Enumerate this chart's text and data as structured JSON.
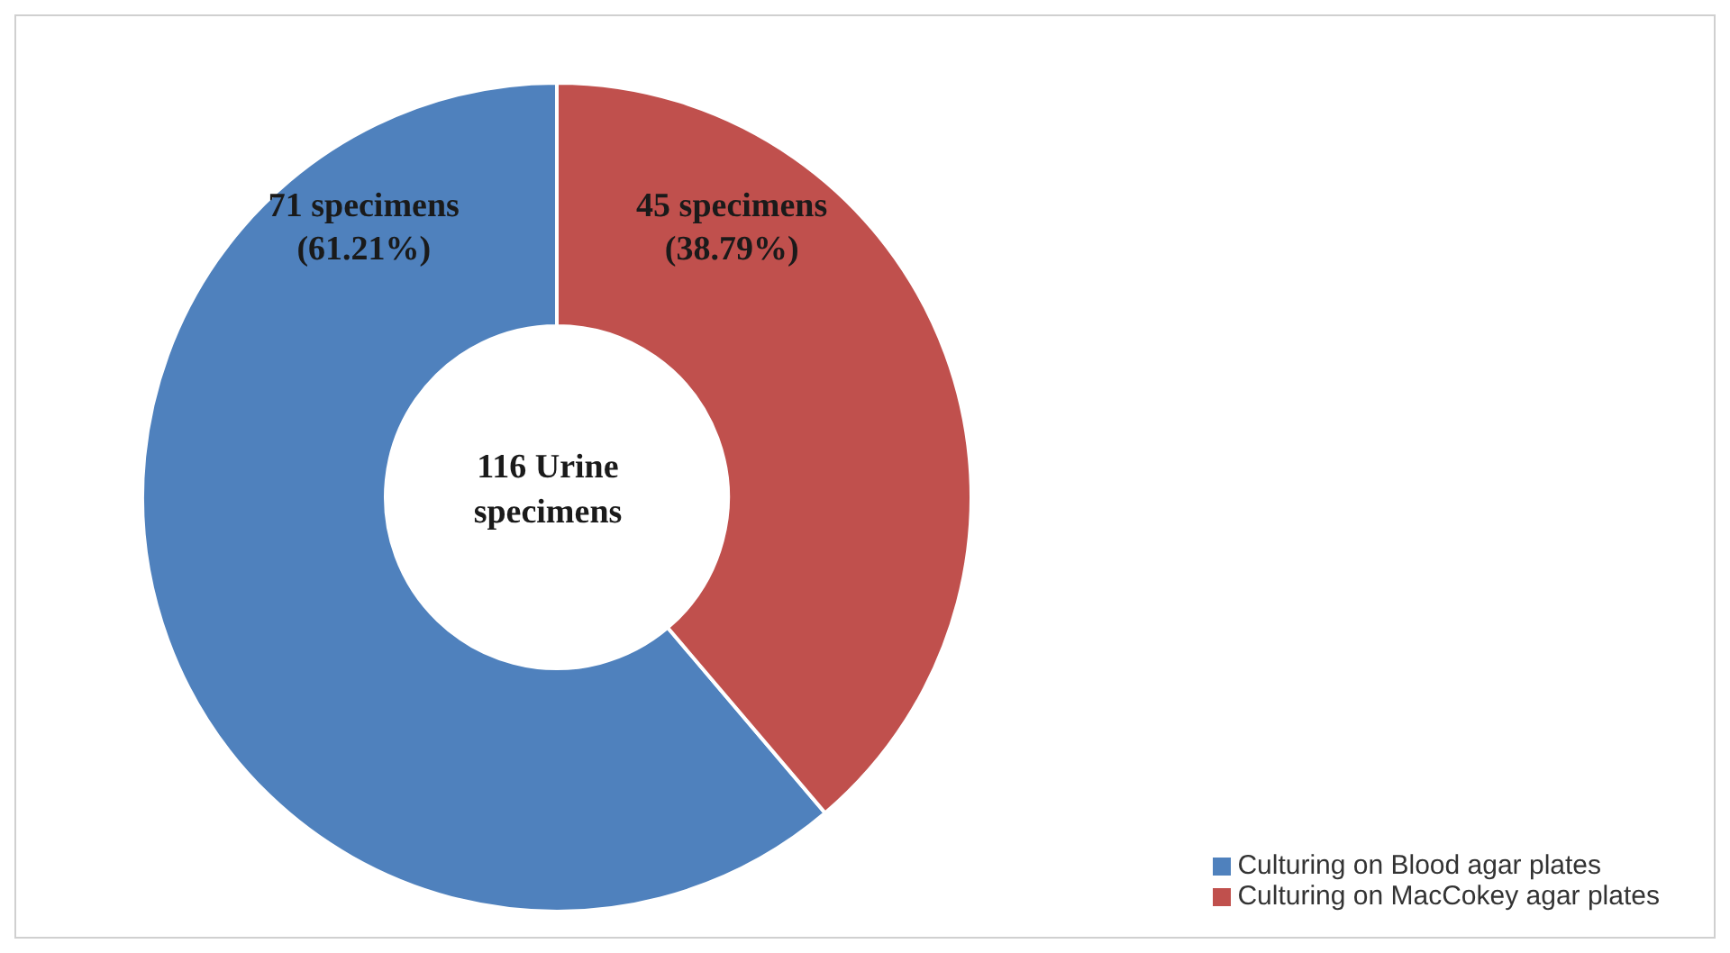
{
  "chart_data": {
    "type": "donut",
    "categories": [
      "Culturing on Blood agar plates",
      "Culturing on MacCokey agar plates"
    ],
    "values": [
      71,
      45
    ],
    "colors": [
      "#4f81bd",
      "#c0504d"
    ],
    "value_labels": [
      "71 specimens\n(61.21%)",
      "45 specimens\n(38.79%)"
    ],
    "annotations": [
      "116 Urine\nspecimens"
    ],
    "legend": "bottom right"
  }
}
